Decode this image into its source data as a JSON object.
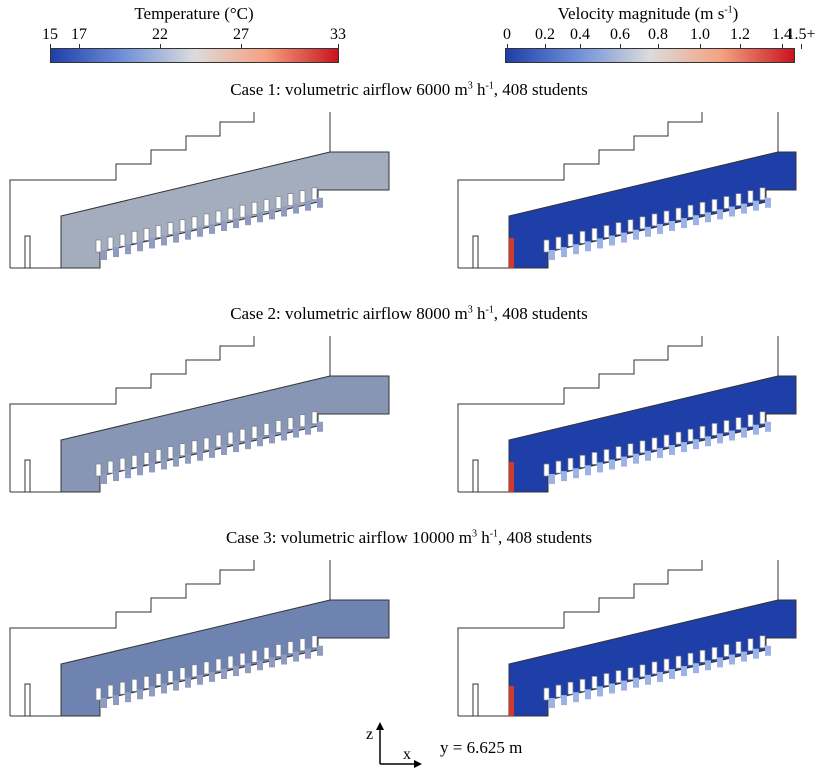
{
  "temperature_colorbar": {
    "title": "Temperature (°C)",
    "ticks": [
      "15",
      "17",
      "22",
      "27",
      "33"
    ],
    "colors": [
      "#1f3fa8",
      "#6f8fd8",
      "#dcdcdc",
      "#f4a080",
      "#c8141e"
    ]
  },
  "velocity_colorbar": {
    "title_prefix": "Velocity magnitude (m s",
    "title_sup": "-1",
    "title_suffix": ")",
    "ticks": [
      "0",
      "0.2",
      "0.4",
      "0.6",
      "0.8",
      "1.0",
      "1.2",
      "1.4",
      "1.5+"
    ],
    "colors": [
      "#1f3fa8",
      "#6f8fd8",
      "#dcdcdc",
      "#f4a080",
      "#c8141e"
    ]
  },
  "cases": [
    {
      "title_a": "Case 1: volumetric airflow 6000 m",
      "title_sup1": "3",
      "title_b": " h",
      "title_sup2": "-1",
      "title_c": ", 408 students"
    },
    {
      "title_a": "Case 2: volumetric airflow 8000 m",
      "title_sup1": "3",
      "title_b": " h",
      "title_sup2": "-1",
      "title_c": ", 408 students"
    },
    {
      "title_a": "Case 3: volumetric airflow 10000 m",
      "title_sup1": "3",
      "title_b": " h",
      "title_sup2": "-1",
      "title_c": ", 408 students"
    }
  ],
  "axes": {
    "z_label": "z",
    "x_label": "x",
    "section": "y = 6.625 m"
  },
  "colors": {
    "temp_field_case1": "#a3adbd",
    "temp_field_case2": "#8796b4",
    "temp_field_case3": "#6e83b0",
    "velocity_field": "#1f3fa8",
    "outline": "#333333"
  }
}
